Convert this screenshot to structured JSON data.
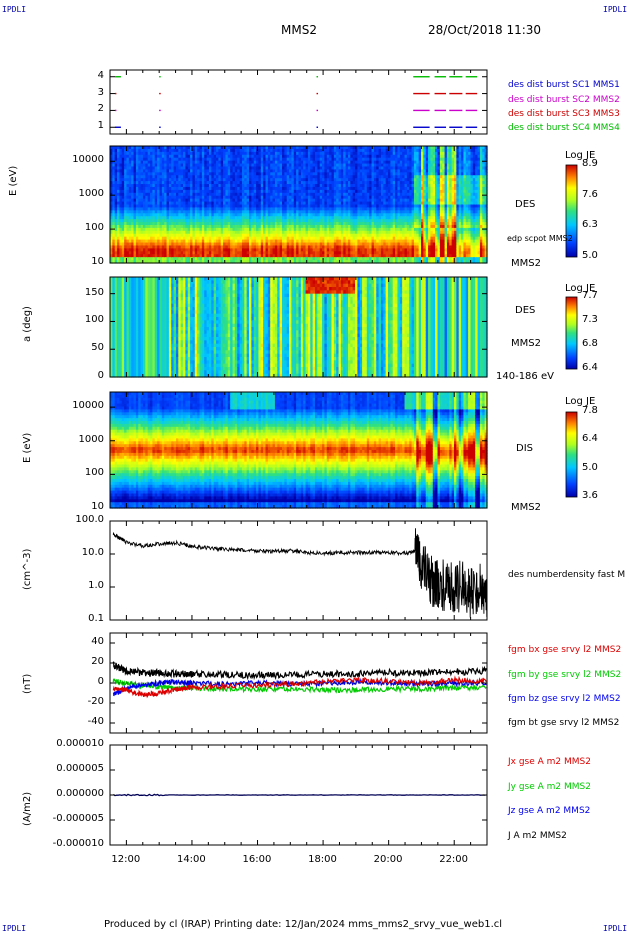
{
  "header": {
    "corner_tl": "IPDLI",
    "corner_tr": "IPDLI",
    "corner_bl": "IPDLI",
    "corner_br": "IPDLI",
    "spacecraft": "MMS2",
    "datetime": "28/Oct/2018 11:30"
  },
  "footer": {
    "text": "Produced by cl (IRAP)   Printing date: 12/Jan/2024   mms_mms2_srvy_vue_web1.cl"
  },
  "colors": {
    "mms1": "#0000cc",
    "mms2": "#cc00cc",
    "mms3": "#cc0000",
    "mms4": "#00bb00",
    "bx": "#dd0000",
    "by": "#00cc00",
    "bz": "#0000ee",
    "bt": "#000000"
  },
  "chart_data": [
    {
      "type": "line",
      "panel": "burst-availability",
      "ytick_labels": [
        "1",
        "2",
        "3",
        "4"
      ],
      "legend": [
        "des dist burst SC1 MMS1",
        "des dist burst SC2 MMS2",
        "des dist burst SC3 MMS3",
        "des dist burst SC4 MMS4"
      ],
      "ylim": [
        0.6,
        4.4
      ]
    },
    {
      "type": "heatmap",
      "panel": "des-energy",
      "ylabel": "E (eV)",
      "ytick_labels": [
        "10",
        "100",
        "1000",
        "10000"
      ],
      "yscale": "log",
      "right_labels": [
        "DES",
        "edp scpot MMS2",
        "MMS2"
      ],
      "colorbar": {
        "title": "Log JE",
        "ticks": [
          "8.9",
          "7.6",
          "6.3",
          "5.0"
        ],
        "range": [
          5.0,
          8.9
        ]
      }
    },
    {
      "type": "heatmap",
      "panel": "des-pitch-angle",
      "ylabel": "a (deg)",
      "ytick_labels": [
        "0",
        "50",
        "100",
        "150"
      ],
      "ylim": [
        0,
        180
      ],
      "right_labels": [
        "DES",
        "MMS2",
        "140-186 eV"
      ],
      "colorbar": {
        "title": "Log JE",
        "ticks": [
          "7.7",
          "7.3",
          "6.8",
          "6.4"
        ],
        "range": [
          6.4,
          7.7
        ]
      }
    },
    {
      "type": "heatmap",
      "panel": "dis-energy",
      "ylabel": "E (eV)",
      "ytick_labels": [
        "10",
        "100",
        "1000",
        "10000"
      ],
      "yscale": "log",
      "right_labels": [
        "DIS",
        "MMS2"
      ],
      "colorbar": {
        "title": "Log JE",
        "ticks": [
          "7.8",
          "6.4",
          "5.0",
          "3.6"
        ],
        "range": [
          3.6,
          7.8
        ]
      }
    },
    {
      "type": "line",
      "panel": "density",
      "ylabel": "(cm^-3)",
      "ytick_labels": [
        "0.1",
        "1.0",
        "10.0",
        "100.0"
      ],
      "yscale": "log",
      "ylim": [
        0.1,
        100
      ],
      "legend": [
        "des numberdensity fast M"
      ],
      "series": [
        {
          "x": [
            11.6,
            11.8,
            12.0,
            12.5,
            13.0,
            13.5,
            14.0,
            14.5,
            15.0,
            15.5,
            16.0,
            16.5,
            17.0,
            17.5,
            18.0,
            18.5,
            19.0,
            19.5,
            20.0,
            20.5,
            20.8,
            21.0,
            21.3,
            21.5,
            21.8,
            22.0,
            22.3,
            22.5,
            22.8,
            23.0
          ],
          "values": [
            40,
            30,
            22,
            18,
            20,
            22,
            17,
            15,
            14,
            13,
            12.5,
            12,
            12.5,
            11,
            10.5,
            11,
            11,
            11,
            11,
            10.5,
            12,
            4.0,
            1.5,
            1.2,
            1.0,
            0.8,
            1.2,
            0.6,
            1.0,
            0.5
          ]
        }
      ]
    },
    {
      "type": "line",
      "panel": "magnetic-field",
      "ylabel": "(nT)",
      "ytick_labels": [
        "-40",
        "-20",
        "0",
        "20",
        "40"
      ],
      "ylim": [
        -50,
        50
      ],
      "series": [
        {
          "name": "fgm bx gse srvy l2 MMS2",
          "x": [
            11.6,
            12.0,
            12.5,
            13.0,
            13.5,
            14.0,
            15.0,
            16.0,
            17.0,
            18.0,
            19.0,
            20.0,
            21.0,
            22.0,
            23.0
          ],
          "values": [
            -5,
            -7,
            -12,
            -10,
            -6,
            -4,
            -3,
            -2,
            -1,
            1,
            3,
            2,
            0,
            3,
            2
          ]
        },
        {
          "name": "fgm by gse srvy l2 MMS2",
          "x": [
            11.6,
            12.0,
            12.5,
            13.0,
            13.5,
            14.0,
            15.0,
            16.0,
            17.0,
            18.0,
            19.0,
            20.0,
            21.0,
            22.0,
            23.0
          ],
          "values": [
            2,
            0,
            -3,
            -4,
            -5,
            -5,
            -6,
            -6,
            -6,
            -7,
            -7,
            -6,
            -6,
            -5,
            -4
          ]
        },
        {
          "name": "fgm bz gse srvy l2 MMS2",
          "x": [
            11.6,
            12.0,
            12.5,
            13.0,
            13.5,
            14.0,
            15.0,
            16.0,
            17.0,
            18.0,
            19.0,
            20.0,
            21.0,
            22.0,
            23.0
          ],
          "values": [
            -12,
            -5,
            -2,
            0,
            1,
            0,
            -1,
            0,
            -1,
            0,
            1,
            0,
            -1,
            0,
            0
          ]
        },
        {
          "name": "fgm bt gse srvy l2 MMS2",
          "x": [
            11.6,
            12.0,
            12.5,
            13.0,
            13.5,
            14.0,
            15.0,
            16.0,
            17.0,
            18.0,
            19.0,
            20.0,
            21.0,
            22.0,
            23.0
          ],
          "values": [
            18,
            12,
            10,
            10,
            9,
            9,
            8,
            8,
            8,
            9,
            9,
            10,
            10,
            11,
            12
          ]
        }
      ]
    },
    {
      "type": "line",
      "panel": "current-density",
      "ylabel": "(A/m2)",
      "ytick_labels": [
        "-0.000010",
        "-0.000005",
        "0.000000",
        "0.000005",
        "0.000010"
      ],
      "ylim": [
        -1e-05,
        1e-05
      ],
      "legend": [
        "Jx gse A m2 MMS2",
        "Jy gse A m2 MMS2",
        "Jz gse A m2 MMS2",
        "J A m2 MMS2"
      ],
      "series": [
        {
          "x": [
            11.6,
            23.0
          ],
          "values": [
            0,
            0
          ]
        }
      ]
    }
  ],
  "time_axis": {
    "xlim": [
      11.5,
      23.0
    ],
    "tick_labels": [
      "12:00",
      "14:00",
      "16:00",
      "18:00",
      "20:00",
      "22:00"
    ],
    "tick_values": [
      12,
      14,
      16,
      18,
      20,
      22
    ]
  }
}
